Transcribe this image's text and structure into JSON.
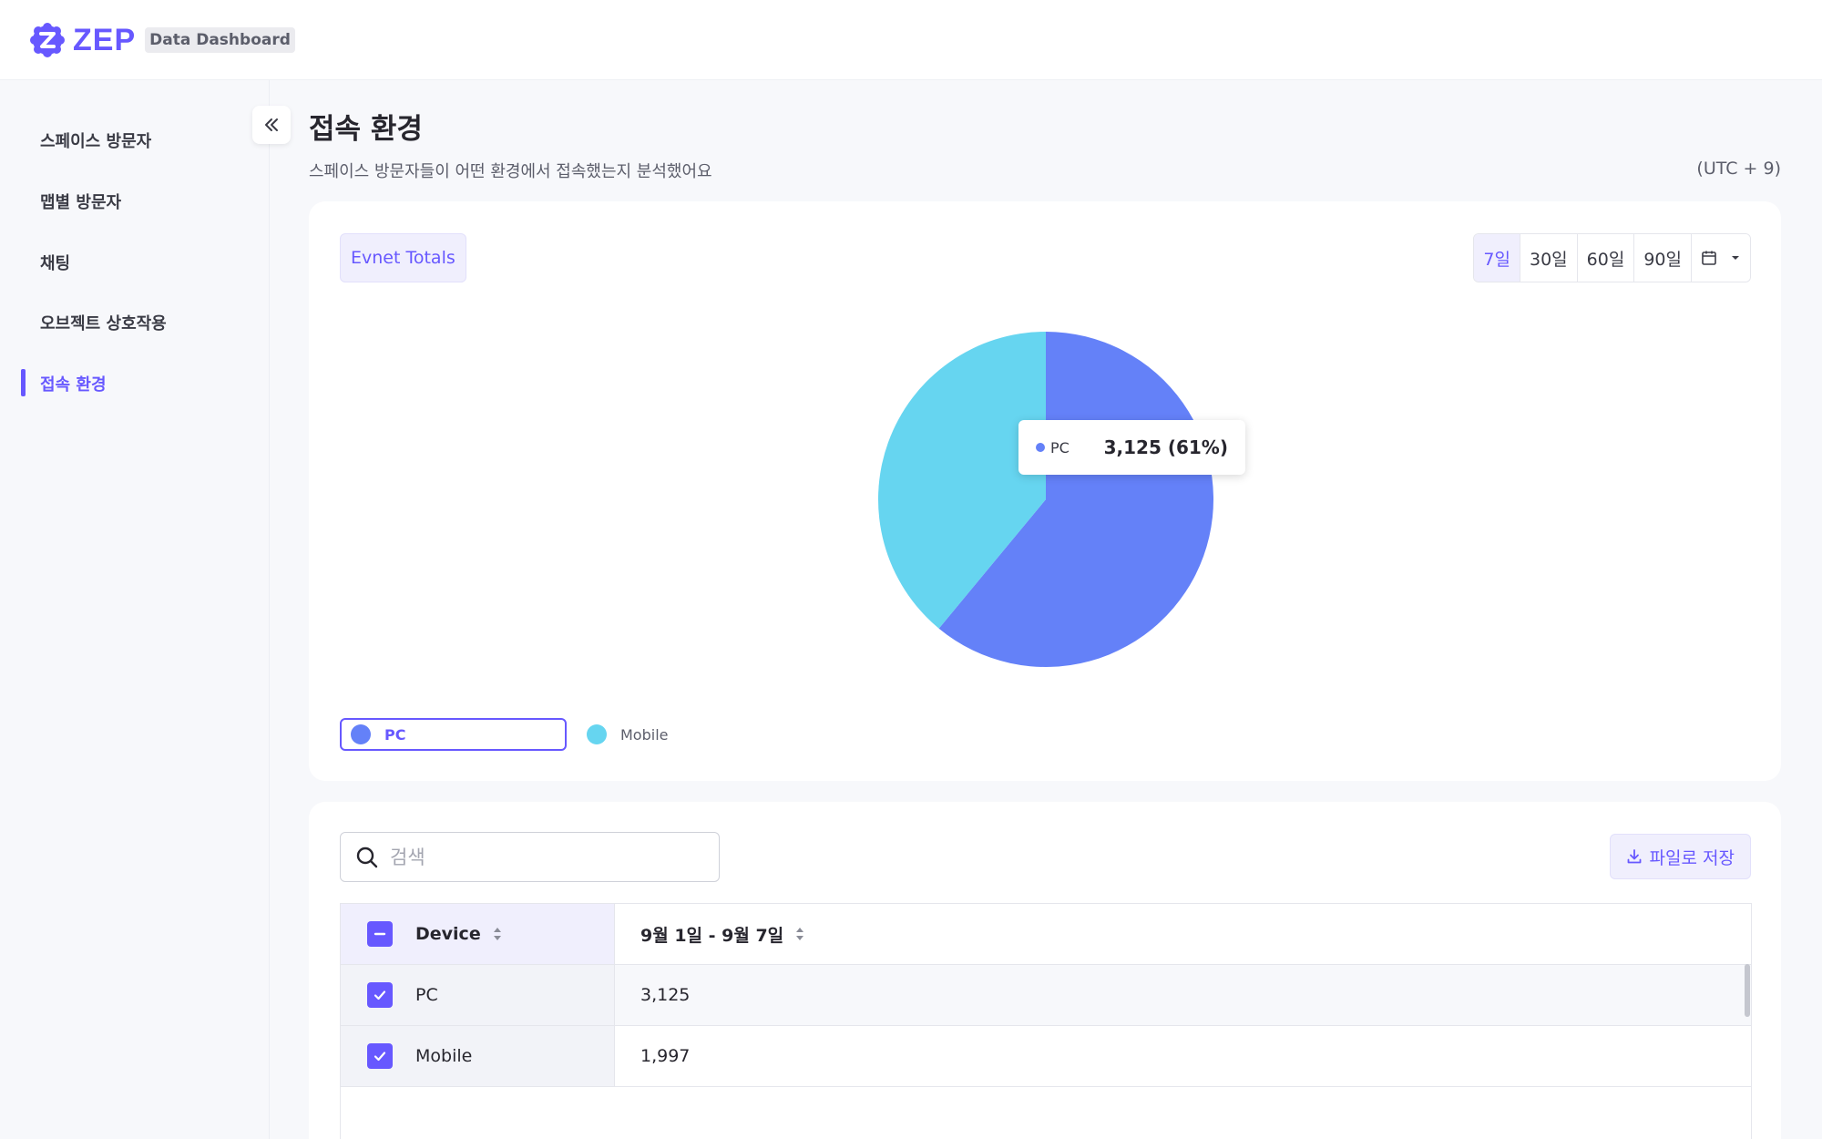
{
  "header": {
    "logo_text": "ZEP",
    "badge": "Data Dashboard"
  },
  "sidebar": {
    "items": [
      {
        "label": "스페이스 방문자"
      },
      {
        "label": "맵별 방문자"
      },
      {
        "label": "채팅"
      },
      {
        "label": "오브젝트 상호작용"
      },
      {
        "label": "접속 환경"
      }
    ],
    "active_index": 4
  },
  "page": {
    "title": "접속 환경",
    "description": "스페이스 방문자들이 어떤 환경에서 접속했는지 분석했어요",
    "timezone": "(UTC + 9)"
  },
  "chart_card": {
    "chip": "Evnet Totals",
    "ranges": [
      "7일",
      "30일",
      "60일",
      "90일"
    ],
    "active_range": "7일",
    "calendar_icon": "calendar-icon",
    "tooltip": {
      "label": "PC",
      "value": "3,125 (61%)"
    },
    "legend": [
      {
        "label": "PC",
        "color": "#6481f8"
      },
      {
        "label": "Mobile",
        "color": "#66d5f0"
      }
    ]
  },
  "chart_data": {
    "type": "pie",
    "categories": [
      "PC",
      "Mobile"
    ],
    "values": [
      3125,
      1997
    ],
    "colors": [
      "#6481f8",
      "#66d5f0"
    ]
  },
  "table_card": {
    "search_placeholder": "검색",
    "save_label": "파일로 저장",
    "columns": [
      "Device",
      "9월 1일 - 9월 7일"
    ],
    "rows": [
      {
        "device": "PC",
        "value": "3,125"
      },
      {
        "device": "Mobile",
        "value": "1,997"
      }
    ]
  },
  "colors": {
    "accent": "#6758ff",
    "pc": "#6481f8",
    "mobile": "#66d5f0"
  }
}
